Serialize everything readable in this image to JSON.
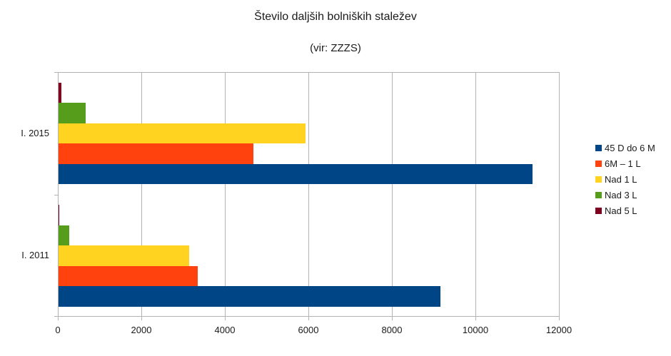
{
  "chart_data": {
    "type": "bar",
    "orientation": "horizontal",
    "title": "Število daljših bolniških staležev",
    "subtitle": "(vir: ZZZS)",
    "xlabel": "",
    "ylabel": "",
    "xlim": [
      0,
      12000
    ],
    "x_ticks": [
      "0",
      "2000",
      "4000",
      "6000",
      "8000",
      "10000",
      "12000"
    ],
    "grid": true,
    "legend_position": "right",
    "categories": [
      "I. 2015",
      "I. 2011"
    ],
    "series": [
      {
        "name": "45 D do 6 M",
        "color": "#004586",
        "values": [
          11350,
          9140
        ]
      },
      {
        "name": "6M – 1 L",
        "color": "#ff420e",
        "values": [
          4670,
          3340
        ]
      },
      {
        "name": "Nad 1 L",
        "color": "#ffd320",
        "values": [
          5920,
          3130
        ]
      },
      {
        "name": "Nad 3 L",
        "color": "#579d1c",
        "values": [
          650,
          250
        ]
      },
      {
        "name": "Nad 5 L",
        "color": "#7e0021",
        "values": [
          70,
          20
        ]
      }
    ]
  }
}
